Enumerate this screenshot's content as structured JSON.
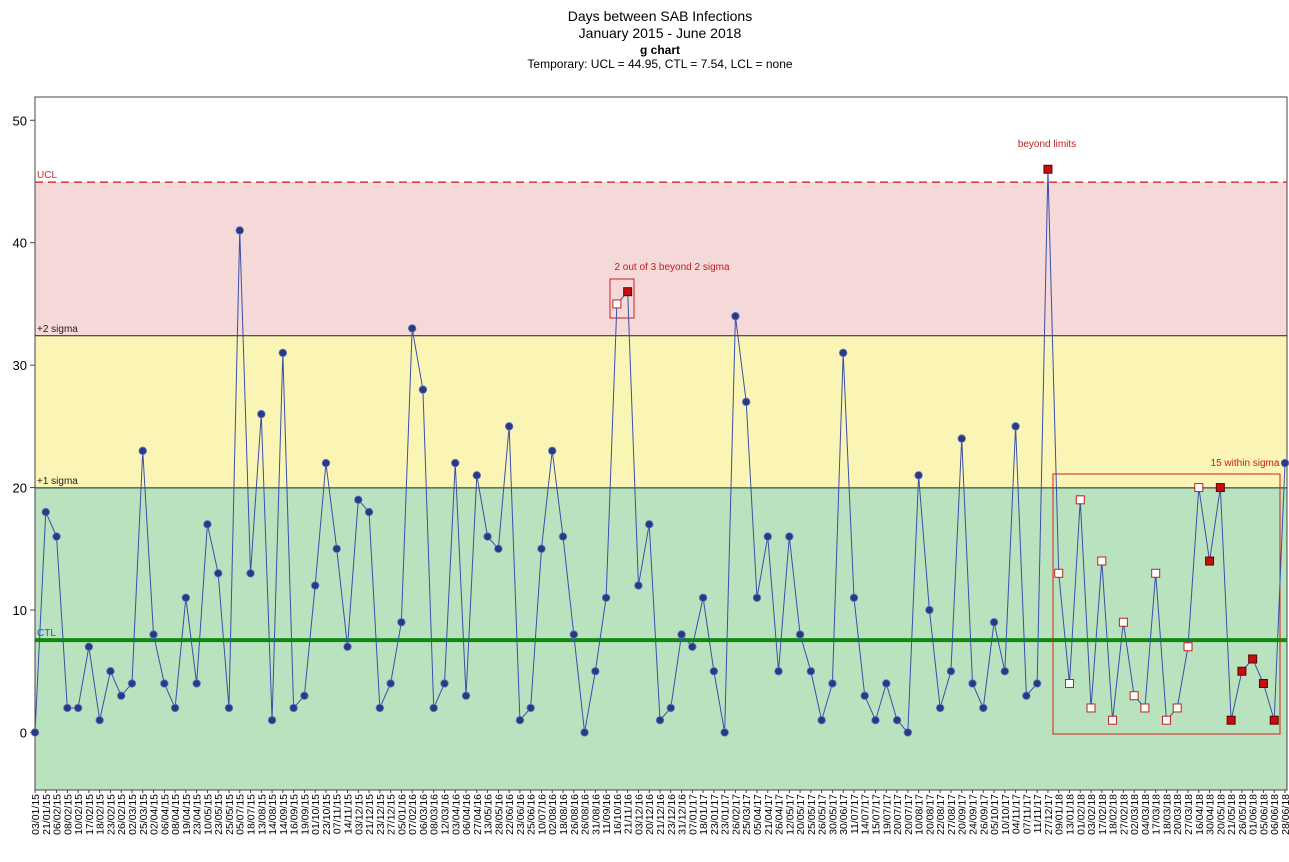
{
  "chart_data": {
    "type": "line",
    "title": "Days between SAB Infections",
    "subtitle": "January 2015 - June 2018",
    "chart_kind": "g chart",
    "note": "Temporary: UCL = 44.95, CTL = 7.54, LCL = none",
    "categories": [
      "03/01/15",
      "21/01/15",
      "06/02/15",
      "08/02/15",
      "10/02/15",
      "17/02/15",
      "18/02/15",
      "23/02/15",
      "26/02/15",
      "02/03/15",
      "25/03/15",
      "02/04/15",
      "06/04/15",
      "08/04/15",
      "19/04/15",
      "23/04/15",
      "10/05/15",
      "23/05/15",
      "25/05/15",
      "05/07/15",
      "18/07/15",
      "13/08/15",
      "14/08/15",
      "14/09/15",
      "16/09/15",
      "19/09/15",
      "01/10/15",
      "23/10/15",
      "07/11/15",
      "14/11/15",
      "03/12/15",
      "21/12/15",
      "23/12/15",
      "27/12/15",
      "05/01/16",
      "07/02/16",
      "06/03/16",
      "08/03/16",
      "12/03/16",
      "03/04/16",
      "06/04/16",
      "27/04/16",
      "13/05/16",
      "28/05/16",
      "22/06/16",
      "23/06/16",
      "25/06/16",
      "10/07/16",
      "02/08/16",
      "18/08/16",
      "26/08/16",
      "26/08/16",
      "31/08/16",
      "11/09/16",
      "16/10/16",
      "21/11/16",
      "03/12/16",
      "20/12/16",
      "21/12/16",
      "23/12/16",
      "31/12/16",
      "07/01/17",
      "18/01/17",
      "23/01/17",
      "23/01/17",
      "26/02/17",
      "25/03/17",
      "05/04/17",
      "21/04/17",
      "26/04/17",
      "12/05/17",
      "20/05/17",
      "25/05/17",
      "26/05/17",
      "30/05/17",
      "30/06/17",
      "11/07/17",
      "14/07/17",
      "15/07/17",
      "19/07/17",
      "20/07/17",
      "20/07/17",
      "10/08/17",
      "20/08/17",
      "22/08/17",
      "27/08/17",
      "20/09/17",
      "24/09/17",
      "26/09/17",
      "05/10/17",
      "10/10/17",
      "04/11/17",
      "07/11/17",
      "11/11/17",
      "27/12/17",
      "09/01/18",
      "13/01/18",
      "01/02/18",
      "03/02/18",
      "17/02/18",
      "18/02/18",
      "27/02/18",
      "02/03/18",
      "04/03/18",
      "17/03/18",
      "18/03/18",
      "20/03/18",
      "27/03/18",
      "16/04/18",
      "30/04/18",
      "20/05/18",
      "21/05/18",
      "26/05/18",
      "01/06/18",
      "05/06/18",
      "06/06/18",
      "28/06/18"
    ],
    "series": [
      {
        "color": "#3a4fa8",
        "values": [
          0,
          18,
          16,
          2,
          2,
          7,
          1,
          5,
          3,
          4,
          23,
          8,
          4,
          2,
          11,
          4,
          17,
          13,
          2,
          41,
          13,
          26,
          1,
          31,
          2,
          3,
          12,
          22,
          15,
          7,
          19,
          18,
          2,
          4,
          9,
          33,
          28,
          2,
          4,
          22,
          3,
          21,
          16,
          15,
          25,
          1,
          2,
          15,
          23,
          16,
          8,
          0,
          5,
          11,
          35,
          36,
          12,
          17,
          1,
          2,
          8,
          7,
          11,
          5,
          0,
          34,
          27,
          11,
          16,
          5,
          16,
          8,
          5,
          1,
          4,
          31,
          11,
          3,
          1,
          4,
          1,
          0,
          21,
          10,
          2,
          5,
          24,
          4,
          2,
          9,
          5,
          25,
          3,
          4,
          46,
          13,
          4,
          19,
          2,
          14,
          1,
          9,
          3,
          2,
          13,
          1,
          2,
          7,
          20,
          14,
          20,
          1,
          5,
          6,
          4,
          1,
          22
        ],
        "markers": [
          "circle",
          "circle",
          "circle",
          "circle",
          "circle",
          "circle",
          "circle",
          "circle",
          "circle",
          "circle",
          "circle",
          "circle",
          "circle",
          "circle",
          "circle",
          "circle",
          "circle",
          "circle",
          "circle",
          "circle",
          "circle",
          "circle",
          "circle",
          "circle",
          "circle",
          "circle",
          "circle",
          "circle",
          "circle",
          "circle",
          "circle",
          "circle",
          "circle",
          "circle",
          "circle",
          "circle",
          "circle",
          "circle",
          "circle",
          "circle",
          "circle",
          "circle",
          "circle",
          "circle",
          "circle",
          "circle",
          "circle",
          "circle",
          "circle",
          "circle",
          "circle",
          "circle",
          "circle",
          "circle",
          "open",
          "red",
          "circle",
          "circle",
          "circle",
          "circle",
          "circle",
          "circle",
          "circle",
          "circle",
          "circle",
          "circle",
          "circle",
          "circle",
          "circle",
          "circle",
          "circle",
          "circle",
          "circle",
          "circle",
          "circle",
          "circle",
          "circle",
          "circle",
          "circle",
          "circle",
          "circle",
          "circle",
          "circle",
          "circle",
          "circle",
          "circle",
          "circle",
          "circle",
          "circle",
          "circle",
          "circle",
          "circle",
          "circle",
          "circle",
          "red",
          "open",
          "open",
          "open",
          "open",
          "open",
          "open",
          "open",
          "open",
          "open",
          "open",
          "open",
          "open",
          "open",
          "open",
          "red",
          "red",
          "red",
          "red",
          "red",
          "red",
          "red",
          "circle"
        ]
      }
    ],
    "limits": [
      {
        "name": "UCL",
        "value": 44.95,
        "color": "#e03030",
        "fill": "#f5d8d8"
      },
      {
        "name": "+2 sigma",
        "value": 32.4,
        "color": "#222222",
        "fill": "#fbf5b5"
      },
      {
        "name": "+1 sigma",
        "value": 19.98,
        "color": "#222222",
        "fill": "#b9e3be"
      },
      {
        "name": "CTL",
        "value": 7.54,
        "color": "#128a12"
      }
    ],
    "annotations": [
      "beyond limits",
      "2 out of 3 beyond 2 sigma",
      "15 within sigma"
    ],
    "ylim": [
      -4.7,
      51.9
    ],
    "yticks": [
      0,
      10,
      20,
      30,
      40,
      50
    ]
  }
}
